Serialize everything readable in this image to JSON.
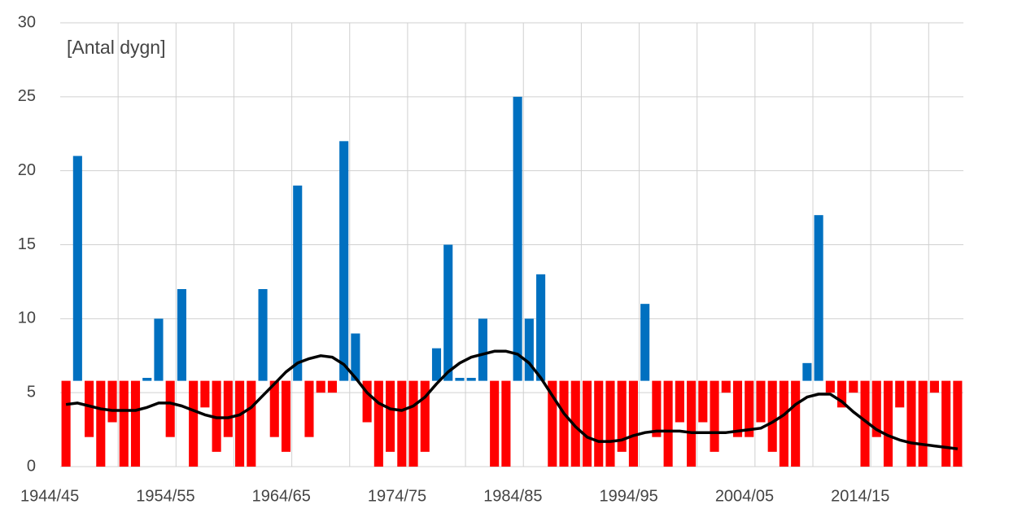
{
  "chart_data": {
    "type": "bar",
    "annotation": "[Antal dygn]",
    "categories": [
      "1944/45",
      null,
      null,
      null,
      null,
      null,
      null,
      null,
      null,
      null,
      "1954/55",
      null,
      null,
      null,
      null,
      null,
      null,
      null,
      null,
      null,
      "1964/65",
      null,
      null,
      null,
      null,
      null,
      null,
      null,
      null,
      null,
      "1974/75",
      null,
      null,
      null,
      null,
      null,
      null,
      null,
      null,
      null,
      "1984/85",
      null,
      null,
      null,
      null,
      null,
      null,
      null,
      null,
      null,
      "1994/95",
      null,
      null,
      null,
      null,
      null,
      null,
      null,
      null,
      null,
      "2004/05",
      null,
      null,
      null,
      null,
      null,
      null,
      null,
      null,
      null,
      "2014/15",
      null,
      null,
      null,
      null,
      null,
      null,
      null
    ],
    "values": [
      0,
      21,
      2,
      0,
      3,
      0,
      0,
      6,
      10,
      2,
      12,
      0,
      4,
      1,
      2,
      0,
      0,
      12,
      2,
      1,
      19,
      2,
      5,
      5,
      22,
      9,
      3,
      0,
      1,
      0,
      0,
      1,
      8,
      15,
      6,
      6,
      10,
      0,
      0,
      25,
      10,
      13,
      0,
      0,
      0,
      0,
      0,
      0,
      1,
      0,
      11,
      2,
      0,
      3,
      0,
      3,
      1,
      5,
      2,
      2,
      3,
      1,
      0,
      0,
      7,
      17,
      5,
      4,
      5,
      0,
      2,
      0,
      4,
      0,
      0,
      5,
      0,
      0
    ],
    "trend": [
      4.2,
      4.3,
      4.1,
      3.9,
      3.8,
      3.8,
      3.8,
      4.0,
      4.3,
      4.3,
      4.1,
      3.8,
      3.5,
      3.3,
      3.3,
      3.5,
      4.0,
      4.8,
      5.6,
      6.4,
      7.0,
      7.3,
      7.5,
      7.4,
      6.9,
      6.0,
      5.0,
      4.3,
      3.9,
      3.8,
      4.1,
      4.7,
      5.6,
      6.4,
      7.0,
      7.4,
      7.6,
      7.8,
      7.8,
      7.6,
      7.0,
      6.0,
      4.8,
      3.6,
      2.7,
      2.0,
      1.7,
      1.7,
      1.8,
      2.1,
      2.3,
      2.4,
      2.4,
      2.4,
      2.3,
      2.3,
      2.3,
      2.3,
      2.4,
      2.5,
      2.6,
      3.0,
      3.5,
      4.2,
      4.7,
      4.9,
      4.9,
      4.4,
      3.7,
      3.1,
      2.5,
      2.1,
      1.8,
      1.6,
      1.5,
      1.4,
      1.3,
      1.2
    ],
    "baseline": 5.8,
    "color_above": "#0070c0",
    "color_below": "#ff0000",
    "trend_color": "#000000",
    "ylim": [
      0,
      30
    ],
    "yticks": [
      0,
      5,
      10,
      15,
      20,
      25,
      30
    ],
    "grid": true
  }
}
